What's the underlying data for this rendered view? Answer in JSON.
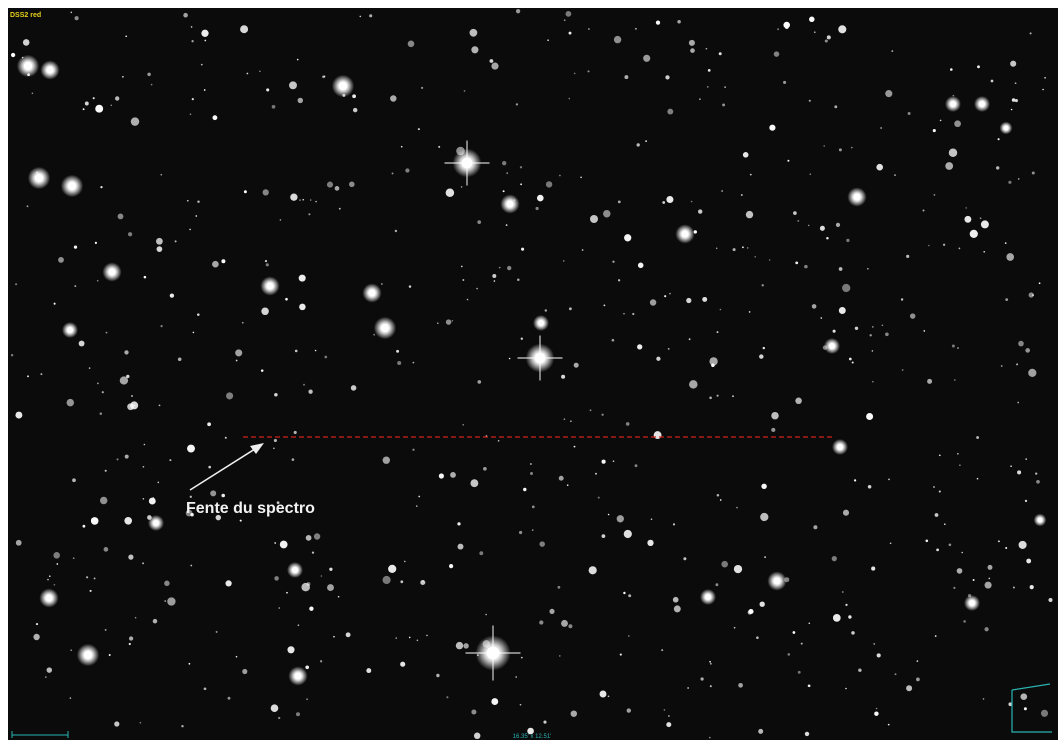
{
  "survey_label": "DSS2 red",
  "annotation": "Fente du spectro",
  "field_size": "16.35' x 12.51'"
}
